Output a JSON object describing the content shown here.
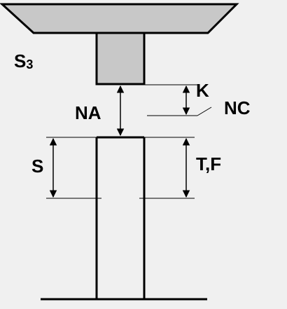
{
  "labels": {
    "s3_main": "S",
    "s3_sub": "3",
    "k": "K",
    "nc": "NC",
    "na": "NA",
    "s": "S",
    "tf": "T,F"
  },
  "colors": {
    "background": "#f0f0f0",
    "fill_gray": "#c8c8c8",
    "stroke": "#000000"
  }
}
